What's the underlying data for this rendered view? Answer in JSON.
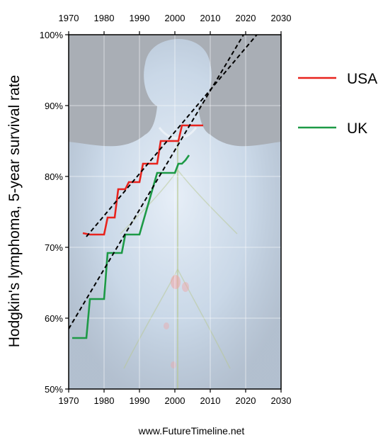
{
  "chart_data": {
    "type": "line",
    "title": "",
    "xlabel": "",
    "ylabel": "Hodgkin's lymphoma, 5-year survival rate",
    "xlim": [
      1970,
      2030
    ],
    "ylim": [
      50,
      100
    ],
    "x_ticks": [
      "1970",
      "1980",
      "1990",
      "2000",
      "2010",
      "2020",
      "2030"
    ],
    "x_tick_values": [
      1970,
      1980,
      1990,
      2000,
      2010,
      2020,
      2030
    ],
    "y_ticks": [
      "50%",
      "60%",
      "70%",
      "80%",
      "90%",
      "100%"
    ],
    "y_tick_values": [
      50,
      60,
      70,
      80,
      90,
      100
    ],
    "grid": true,
    "legend_position": "right",
    "series": [
      {
        "name": "USA",
        "color": "#e8231d",
        "x": [
          1974,
          1976,
          1980,
          1981,
          1982,
          1983,
          1984,
          1985,
          1986,
          1987,
          1988,
          1989,
          1990,
          1991,
          1995,
          1996,
          2000,
          2001,
          2002,
          2008
        ],
        "y": [
          72,
          71.8,
          71.8,
          74.2,
          74.2,
          74.2,
          78.2,
          78.2,
          78.2,
          79.2,
          79.2,
          79.2,
          79.2,
          81.8,
          81.8,
          85,
          85,
          85,
          87.2,
          87.2
        ]
      },
      {
        "name": "UK",
        "color": "#1d9a46",
        "x": [
          1971,
          1975,
          1976,
          1980,
          1981,
          1984,
          1985,
          1986,
          1990,
          1995,
          1999,
          2000,
          2001,
          2002,
          2003,
          2004
        ],
        "y": [
          57.2,
          57.2,
          62.7,
          62.7,
          69.2,
          69.2,
          69.2,
          71.8,
          71.8,
          80.5,
          80.5,
          80.5,
          81.8,
          81.8,
          82.3,
          83
        ]
      },
      {
        "name": "",
        "color": "#000000",
        "dashed": true,
        "x": [
          1975,
          2024
        ],
        "y": [
          71.5,
          100.5
        ]
      },
      {
        "name": "",
        "color": "#000000",
        "dashed": true,
        "x": [
          1970,
          2020
        ],
        "y": [
          58.5,
          100.5
        ]
      }
    ]
  },
  "footer": {
    "text": "www.FutureTimeline.net"
  }
}
